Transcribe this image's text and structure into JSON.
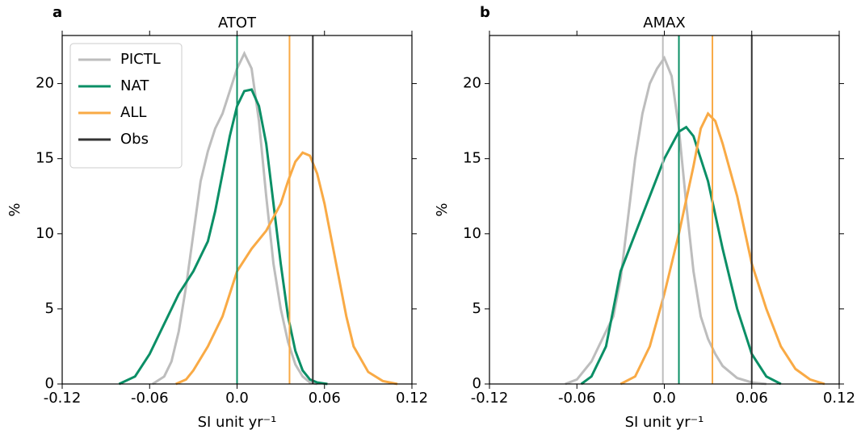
{
  "chart_data": [
    {
      "type": "line",
      "panel_label": "a",
      "title": "ATOT",
      "xlabel": "SI unit yr⁻¹",
      "ylabel": "%",
      "xlim": [
        -0.12,
        0.12
      ],
      "ylim": [
        0,
        23.2
      ],
      "xticks": [
        -0.12,
        -0.06,
        {
          "value": 0,
          "label": "0.0"
        },
        0.06,
        0.12
      ],
      "yticks": [
        0,
        5,
        10,
        15,
        20
      ],
      "legend": "upper left",
      "series": [
        {
          "name": "PICTL",
          "color": "#bdbdbd",
          "x": [
            -0.058,
            -0.05,
            -0.045,
            -0.04,
            -0.035,
            -0.03,
            -0.025,
            -0.02,
            -0.015,
            -0.01,
            -0.005,
            0,
            0.005,
            0.01,
            0.015,
            0.02,
            0.025,
            0.03,
            0.035,
            0.04,
            0.045,
            0.05,
            0.055
          ],
          "values": [
            0,
            0.5,
            1.5,
            3.5,
            6.5,
            10,
            13.5,
            15.5,
            17,
            18,
            19.5,
            21,
            22,
            21,
            17.5,
            12.5,
            8,
            5,
            2.8,
            1.3,
            0.5,
            0.1,
            0
          ]
        },
        {
          "name": "NAT",
          "color": "#0b8f66",
          "vline": 0,
          "x": [
            -0.081,
            -0.07,
            -0.06,
            -0.05,
            -0.04,
            -0.03,
            -0.02,
            -0.015,
            -0.01,
            -0.005,
            0,
            0.005,
            0.01,
            0.015,
            0.02,
            0.025,
            0.03,
            0.035,
            0.04,
            0.045,
            0.05,
            0.055,
            0.062
          ],
          "values": [
            0,
            0.5,
            2,
            4,
            6,
            7.5,
            9.5,
            11.5,
            14,
            16.5,
            18.5,
            19.5,
            19.6,
            18.5,
            16,
            12,
            8,
            4.5,
            2.2,
            0.9,
            0.3,
            0.1,
            0
          ]
        },
        {
          "name": "ALL",
          "color": "#f9aa45",
          "vline": 0.036,
          "x": [
            -0.042,
            -0.035,
            -0.03,
            -0.02,
            -0.01,
            0,
            0.01,
            0.02,
            0.03,
            0.035,
            0.04,
            0.045,
            0.05,
            0.055,
            0.06,
            0.065,
            0.07,
            0.075,
            0.08,
            0.09,
            0.1,
            0.11
          ],
          "values": [
            0,
            0.3,
            0.9,
            2.5,
            4.5,
            7.5,
            9,
            10.2,
            12,
            13.5,
            14.8,
            15.4,
            15.2,
            14,
            12,
            9.5,
            7,
            4.5,
            2.5,
            0.8,
            0.2,
            0
          ]
        },
        {
          "name": "Obs",
          "color": "#333333",
          "vline": 0.052
        }
      ]
    },
    {
      "type": "line",
      "panel_label": "b",
      "title": "AMAX",
      "xlabel": "SI unit yr⁻¹",
      "ylabel": "%",
      "xlim": [
        -0.12,
        0.12
      ],
      "ylim": [
        0,
        23.2
      ],
      "xticks": [
        -0.12,
        -0.06,
        {
          "value": 0,
          "label": "0.0"
        },
        0.06,
        0.12
      ],
      "yticks": [
        0,
        5,
        10,
        15,
        20
      ],
      "series": [
        {
          "color": "#bdbdbd",
          "vline": -0.001,
          "x": [
            -0.068,
            -0.06,
            -0.05,
            -0.045,
            -0.04,
            -0.035,
            -0.03,
            -0.025,
            -0.02,
            -0.015,
            -0.01,
            -0.005,
            0,
            0.005,
            0.01,
            0.015,
            0.02,
            0.025,
            0.03,
            0.035,
            0.04,
            0.05,
            0.06,
            0.07
          ],
          "values": [
            0,
            0.3,
            1.5,
            2.5,
            3.5,
            4.5,
            7,
            11,
            15,
            18,
            20,
            21,
            21.7,
            20.5,
            17,
            12,
            7.5,
            4.5,
            3,
            2,
            1.2,
            0.4,
            0.1,
            0
          ]
        },
        {
          "color": "#0b8f66",
          "vline": 0.01,
          "x": [
            -0.057,
            -0.05,
            -0.04,
            -0.035,
            -0.03,
            -0.02,
            -0.01,
            0,
            0.01,
            0.015,
            0.02,
            0.03,
            0.04,
            0.05,
            0.06,
            0.07,
            0.08
          ],
          "values": [
            0,
            0.5,
            2.5,
            5,
            7.5,
            10,
            12.5,
            15,
            16.8,
            17.1,
            16.5,
            13.5,
            9,
            5,
            2,
            0.5,
            0
          ]
        },
        {
          "color": "#f9aa45",
          "vline": 0.033,
          "x": [
            -0.03,
            -0.02,
            -0.01,
            0,
            0.01,
            0.02,
            0.025,
            0.03,
            0.035,
            0.04,
            0.05,
            0.06,
            0.07,
            0.08,
            0.09,
            0.1,
            0.11
          ],
          "values": [
            0,
            0.5,
            2.5,
            6,
            10,
            14.5,
            17,
            18,
            17.5,
            16,
            12.5,
            8,
            5,
            2.5,
            1,
            0.3,
            0
          ]
        },
        {
          "color": "#333333",
          "vline": 0.06
        }
      ]
    }
  ]
}
